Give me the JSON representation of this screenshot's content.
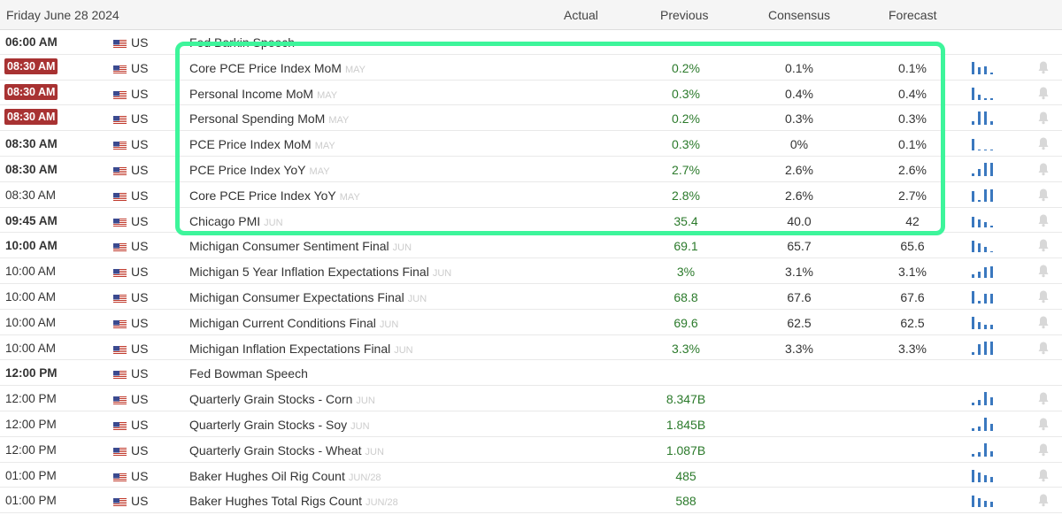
{
  "header": {
    "date": "Friday June 28 2024",
    "actual": "Actual",
    "previous": "Previous",
    "consensus": "Consensus",
    "forecast": "Forecast"
  },
  "colors": {
    "highlight": "#3df59b",
    "previous_green": "#2b7a2b",
    "time_badge_red": "#a83232",
    "chart_blue": "#3a78bf"
  },
  "rows": [
    {
      "time": "06:00 AM",
      "style": "bold",
      "country": "US",
      "event": "Fed Barkin Speech",
      "period": "",
      "actual": "",
      "previous": "",
      "consensus": "",
      "forecast": "",
      "chart": []
    },
    {
      "time": "08:30 AM",
      "style": "red",
      "country": "US",
      "event": "Core PCE Price Index MoM",
      "period": "MAY",
      "actual": "",
      "previous": "0.2%",
      "consensus": "0.1%",
      "forecast": "0.1%",
      "chart": [
        0.9,
        0.5,
        0.6,
        0.1
      ]
    },
    {
      "time": "08:30 AM",
      "style": "red",
      "country": "US",
      "event": "Personal Income MoM",
      "period": "MAY",
      "actual": "",
      "previous": "0.3%",
      "consensus": "0.4%",
      "forecast": "0.4%",
      "chart": [
        0.9,
        0.4,
        0.1,
        0.1
      ]
    },
    {
      "time": "08:30 AM",
      "style": "red",
      "country": "US",
      "event": "Personal Spending MoM",
      "period": "MAY",
      "actual": "",
      "previous": "0.2%",
      "consensus": "0.3%",
      "forecast": "0.3%",
      "chart": [
        0.3,
        1.0,
        1.0,
        0.3
      ]
    },
    {
      "time": "08:30 AM",
      "style": "bold",
      "country": "US",
      "event": "PCE Price Index MoM",
      "period": "MAY",
      "actual": "",
      "previous": "0.3%",
      "consensus": "0%",
      "forecast": "0.1%",
      "chart": [
        0.9,
        0.1,
        0.1,
        0.1
      ]
    },
    {
      "time": "08:30 AM",
      "style": "bold",
      "country": "US",
      "event": "PCE Price Index YoY",
      "period": "MAY",
      "actual": "",
      "previous": "2.7%",
      "consensus": "2.6%",
      "forecast": "2.6%",
      "chart": [
        0.2,
        0.5,
        1.0,
        1.0
      ]
    },
    {
      "time": "08:30 AM",
      "style": "normal",
      "country": "US",
      "event": "Core PCE Price Index YoY",
      "period": "MAY",
      "actual": "",
      "previous": "2.8%",
      "consensus": "2.6%",
      "forecast": "2.7%",
      "chart": [
        0.8,
        0.1,
        0.9,
        0.9
      ]
    },
    {
      "time": "09:45 AM",
      "style": "bold",
      "country": "US",
      "event": "Chicago PMI",
      "period": "JUN",
      "actual": "",
      "previous": "35.4",
      "consensus": "40.0",
      "forecast": "42",
      "chart": [
        0.8,
        0.6,
        0.4,
        0.1
      ]
    },
    {
      "time": "10:00 AM",
      "style": "bold",
      "country": "US",
      "event": "Michigan Consumer Sentiment Final",
      "period": "JUN",
      "actual": "",
      "previous": "69.1",
      "consensus": "65.7",
      "forecast": "65.6",
      "chart": [
        0.9,
        0.7,
        0.4,
        0.1
      ]
    },
    {
      "time": "10:00 AM",
      "style": "normal",
      "country": "US",
      "event": "Michigan 5 Year Inflation Expectations Final",
      "period": "JUN",
      "actual": "",
      "previous": "3%",
      "consensus": "3.1%",
      "forecast": "3.1%",
      "chart": [
        0.3,
        0.5,
        0.8,
        0.9
      ]
    },
    {
      "time": "10:00 AM",
      "style": "normal",
      "country": "US",
      "event": "Michigan Consumer Expectations Final",
      "period": "JUN",
      "actual": "",
      "previous": "68.8",
      "consensus": "67.6",
      "forecast": "67.6",
      "chart": [
        0.9,
        0.2,
        0.7,
        0.7
      ]
    },
    {
      "time": "10:00 AM",
      "style": "normal",
      "country": "US",
      "event": "Michigan Current Conditions Final",
      "period": "JUN",
      "actual": "",
      "previous": "69.6",
      "consensus": "62.5",
      "forecast": "62.5",
      "chart": [
        0.9,
        0.5,
        0.3,
        0.3
      ]
    },
    {
      "time": "10:00 AM",
      "style": "normal",
      "country": "US",
      "event": "Michigan Inflation Expectations Final",
      "period": "JUN",
      "actual": "",
      "previous": "3.3%",
      "consensus": "3.3%",
      "forecast": "3.3%",
      "chart": [
        0.2,
        0.8,
        1.0,
        1.0
      ]
    },
    {
      "time": "12:00 PM",
      "style": "bold",
      "country": "US",
      "event": "Fed Bowman Speech",
      "period": "",
      "actual": "",
      "previous": "",
      "consensus": "",
      "forecast": "",
      "chart": []
    },
    {
      "time": "12:00 PM",
      "style": "normal",
      "country": "US",
      "event": "Quarterly Grain Stocks - Corn",
      "period": "JUN",
      "actual": "",
      "previous": "8.347B",
      "consensus": "",
      "forecast": "",
      "chart": [
        0.2,
        0.4,
        1.0,
        0.6
      ]
    },
    {
      "time": "12:00 PM",
      "style": "normal",
      "country": "US",
      "event": "Quarterly Grain Stocks - Soy",
      "period": "JUN",
      "actual": "",
      "previous": "1.845B",
      "consensus": "",
      "forecast": "",
      "chart": [
        0.2,
        0.3,
        1.0,
        0.5
      ]
    },
    {
      "time": "12:00 PM",
      "style": "normal",
      "country": "US",
      "event": "Quarterly Grain Stocks - Wheat",
      "period": "JUN",
      "actual": "",
      "previous": "1.087B",
      "consensus": "",
      "forecast": "",
      "chart": [
        0.2,
        0.3,
        1.0,
        0.4
      ]
    },
    {
      "time": "01:00 PM",
      "style": "normal",
      "country": "US",
      "event": "Baker Hughes Oil Rig Count",
      "period": "JUN/28",
      "actual": "",
      "previous": "485",
      "consensus": "",
      "forecast": "",
      "chart": [
        0.9,
        0.7,
        0.5,
        0.4
      ]
    },
    {
      "time": "01:00 PM",
      "style": "normal",
      "country": "US",
      "event": "Baker Hughes Total Rigs Count",
      "period": "JUN/28",
      "actual": "",
      "previous": "588",
      "consensus": "",
      "forecast": "",
      "chart": [
        0.9,
        0.7,
        0.5,
        0.4
      ]
    }
  ]
}
